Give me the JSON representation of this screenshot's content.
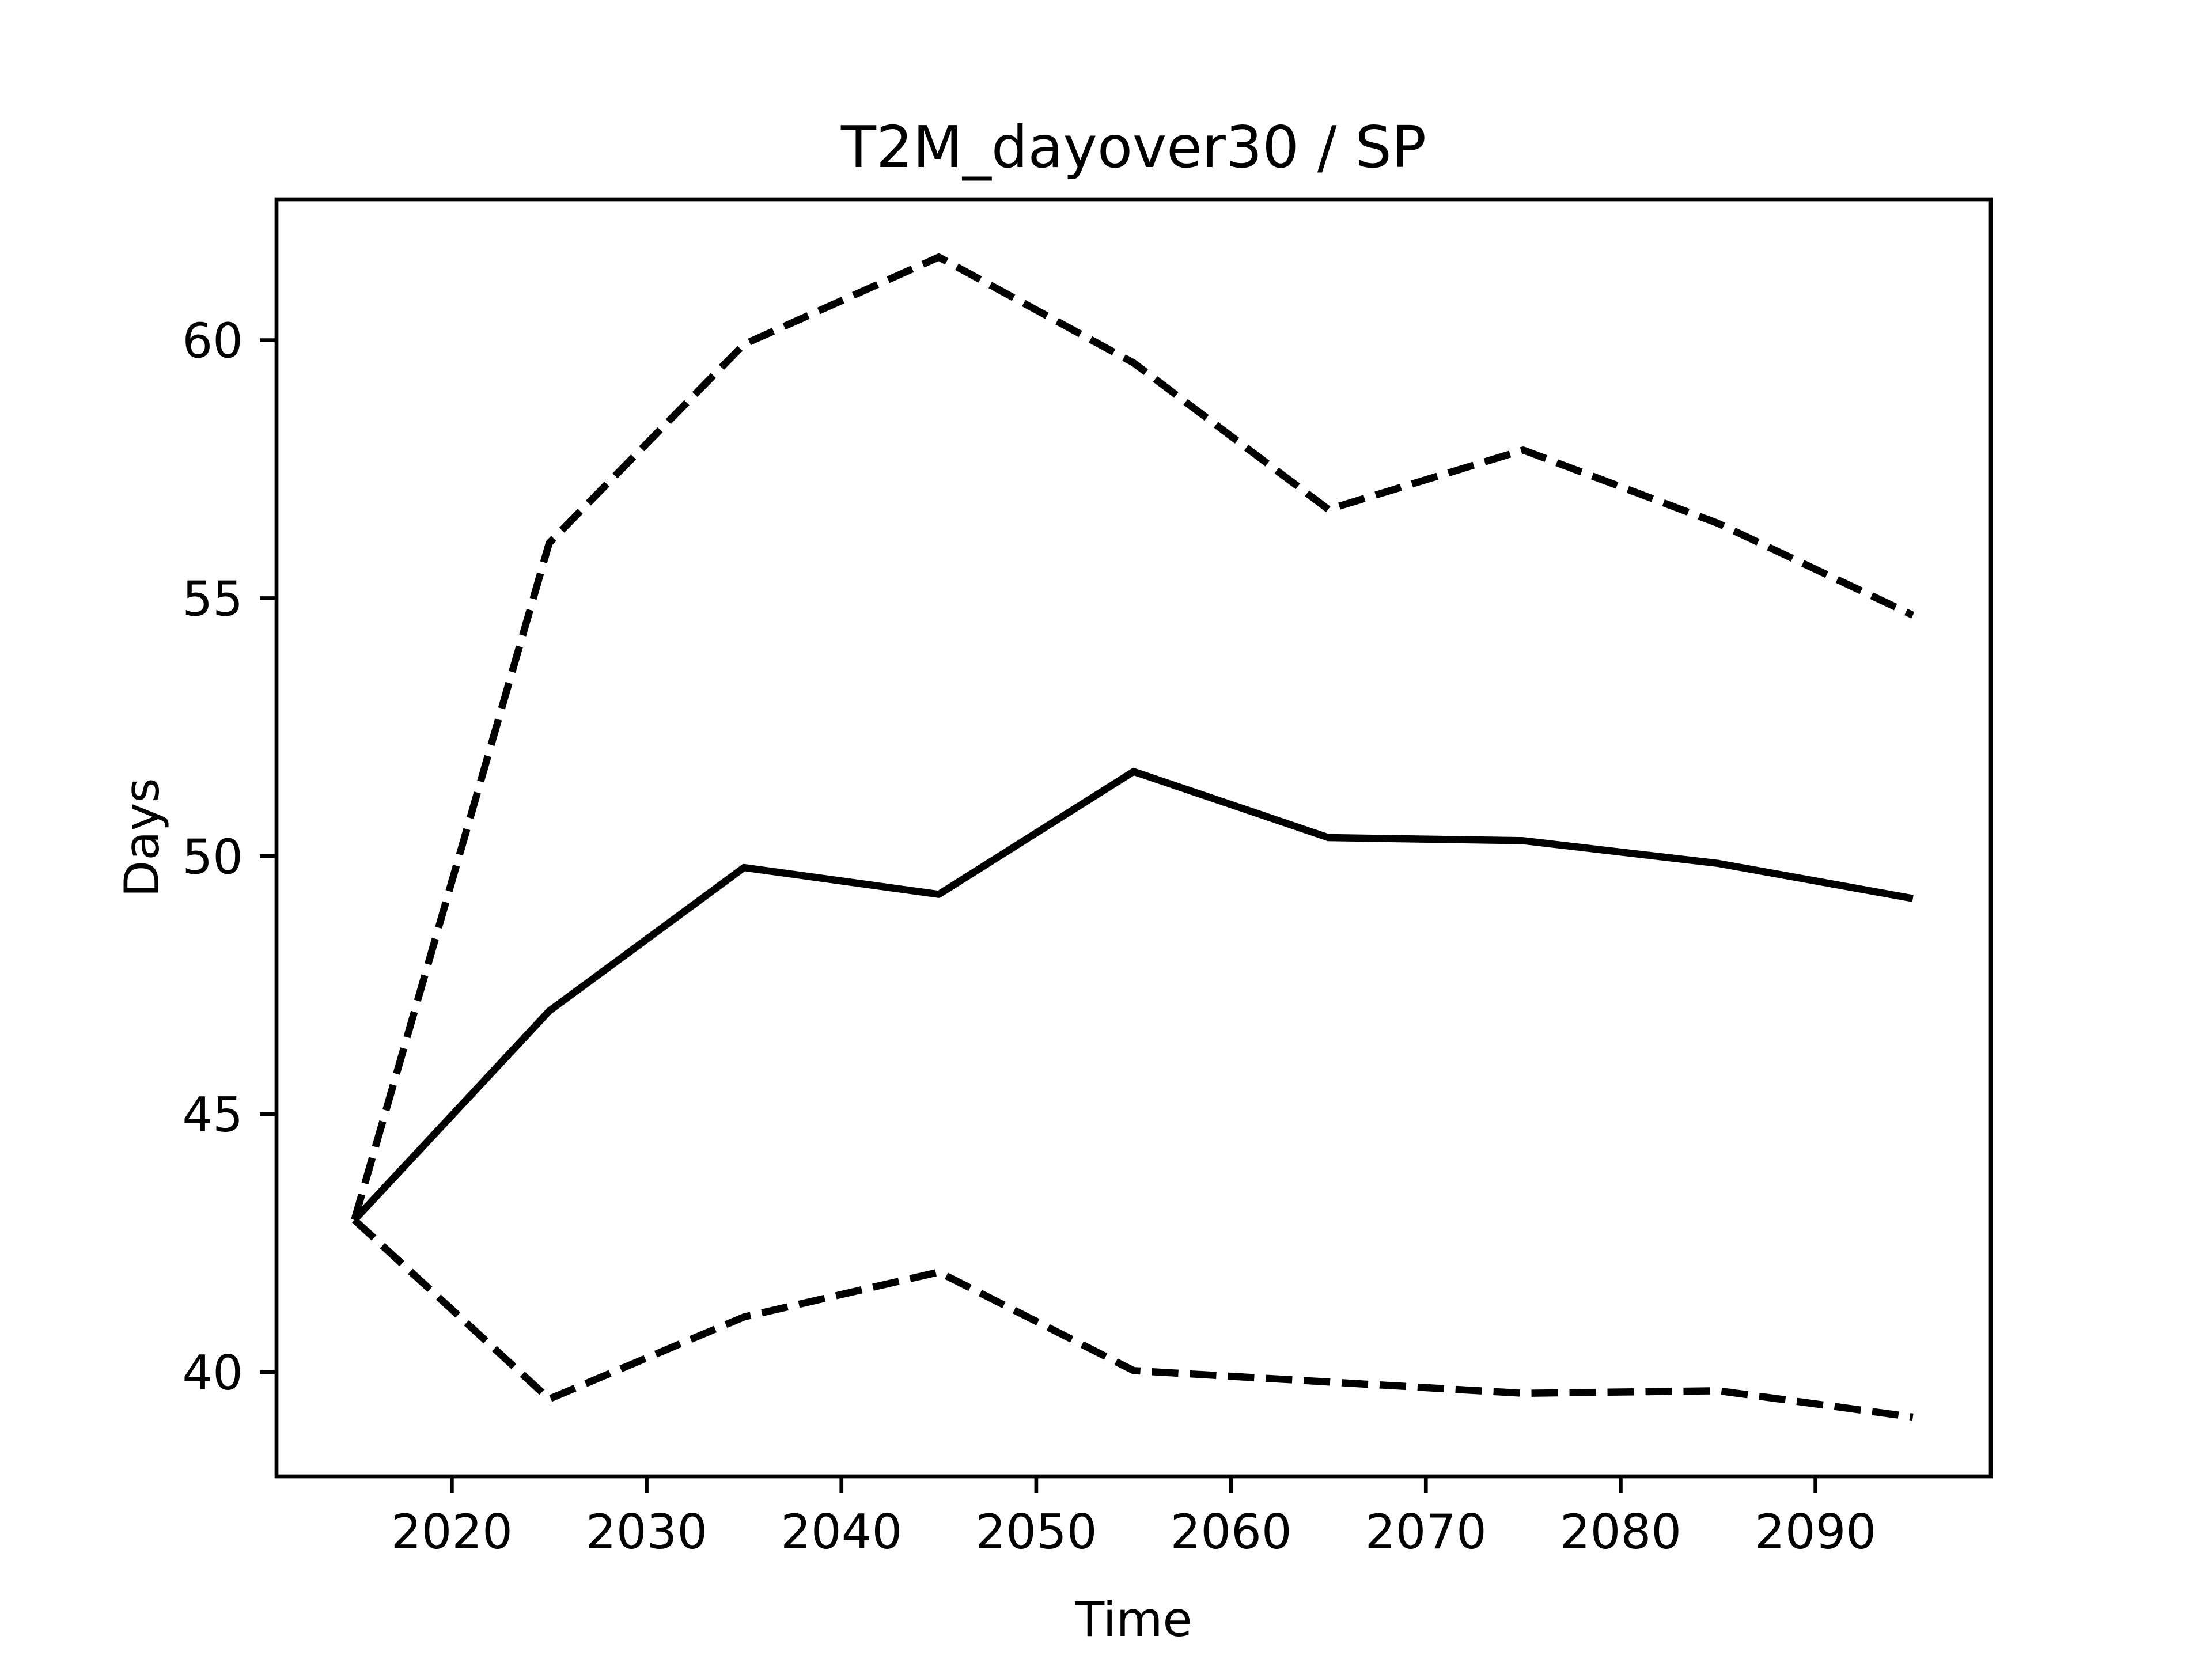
{
  "chart_data": {
    "type": "line",
    "title": "T2M_dayover30 / SP",
    "xlabel": "Time",
    "ylabel": "Days",
    "x": [
      2015,
      2025,
      2035,
      2045,
      2055,
      2065,
      2075,
      2085,
      2095
    ],
    "series": [
      {
        "color": "#000000",
        "style": "solid",
        "values": [
          42.95,
          47.0,
          49.78,
          49.26,
          51.64,
          50.36,
          50.3,
          49.86,
          49.18
        ]
      },
      {
        "color": "#000000",
        "style": "dashed",
        "values": [
          42.95,
          56.07,
          59.92,
          61.61,
          59.56,
          56.72,
          57.87,
          56.45,
          54.67
        ]
      },
      {
        "color": "#000000",
        "style": "dashed",
        "values": [
          42.95,
          39.48,
          41.07,
          41.94,
          40.03,
          39.81,
          39.59,
          39.64,
          39.13
        ]
      }
    ],
    "xlim": [
      2011,
      2099
    ],
    "xticks": [
      2020,
      2030,
      2040,
      2050,
      2060,
      2070,
      2080,
      2090
    ],
    "ylim": [
      37.98,
      62.73
    ],
    "yticks": [
      40,
      45,
      50,
      55,
      60
    ],
    "grid": false
  }
}
